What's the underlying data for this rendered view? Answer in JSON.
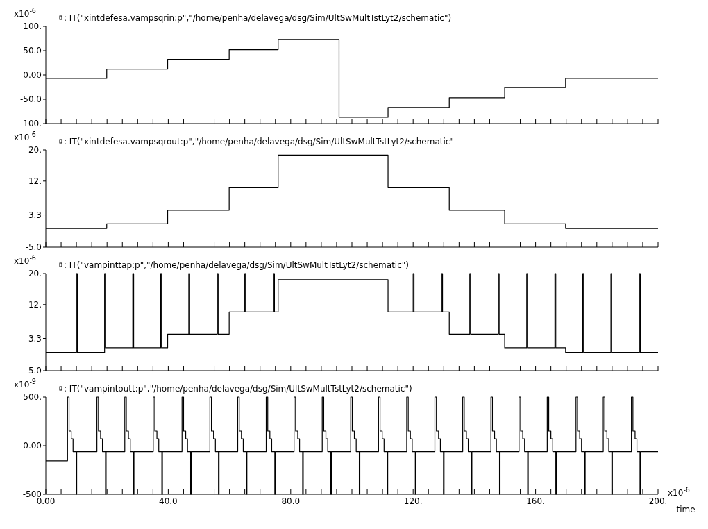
{
  "chart_data": [
    {
      "type": "step",
      "ylabel": "x10$^{-6}$",
      "xlim": [
        0,
        200
      ],
      "xticks": [
        {
          "value": 0,
          "label": null
        },
        {
          "value": 5,
          "label": null
        },
        {
          "value": 10,
          "label": null
        },
        {
          "value": 15,
          "label": null
        },
        {
          "value": 20,
          "label": null
        },
        {
          "value": 25,
          "label": null
        },
        {
          "value": 30,
          "label": null
        },
        {
          "value": 35,
          "label": null
        },
        {
          "value": 40,
          "label": null
        },
        {
          "value": 45,
          "label": null
        },
        {
          "value": 50,
          "label": null
        },
        {
          "value": 55,
          "label": null
        },
        {
          "value": 60,
          "label": null
        },
        {
          "value": 65,
          "label": null
        },
        {
          "value": 70,
          "label": null
        },
        {
          "value": 75,
          "label": null
        },
        {
          "value": 80,
          "label": null
        },
        {
          "value": 85,
          "label": null
        },
        {
          "value": 90,
          "label": null
        },
        {
          "value": 95,
          "label": null
        },
        {
          "value": 100,
          "label": null
        },
        {
          "value": 105,
          "label": null
        },
        {
          "value": 110,
          "label": null
        },
        {
          "value": 115,
          "label": null
        },
        {
          "value": 120,
          "label": null
        },
        {
          "value": 125,
          "label": null
        },
        {
          "value": 130,
          "label": null
        },
        {
          "value": 135,
          "label": null
        },
        {
          "value": 140,
          "label": null
        },
        {
          "value": 145,
          "label": null
        },
        {
          "value": 150,
          "label": null
        },
        {
          "value": 155,
          "label": null
        },
        {
          "value": 160,
          "label": null
        },
        {
          "value": 165,
          "label": null
        },
        {
          "value": 170,
          "label": null
        },
        {
          "value": 175,
          "label": null
        },
        {
          "value": 180,
          "label": null
        },
        {
          "value": 185,
          "label": null
        },
        {
          "value": 190,
          "label": null
        },
        {
          "value": 195,
          "label": null
        },
        {
          "value": 200,
          "label": null
        }
      ],
      "ylim": [
        -100,
        100
      ],
      "yticks": [
        {
          "value": 100,
          "label": "100."
        },
        {
          "value": 50,
          "label": "50.0"
        },
        {
          "value": 0,
          "label": "0.00"
        },
        {
          "value": -50,
          "label": "-50.0"
        },
        {
          "value": -100,
          "label": "-100."
        }
      ],
      "tick_labels": "y",
      "legend": "top",
      "series": [
        {
          "name": ": IT(\"xintdefesa.vampsqrin:p\",\"/home/penha/delavega/dsg/Sim/UltSwMultTstLyt2/schematic\")",
          "color": "#000000",
          "x": [
            0,
            19.9,
            39.8,
            59.9,
            75.9,
            95.8,
            111.8,
            131.8,
            149.9,
            169.8,
            200
          ],
          "values": [
            -7,
            12,
            32,
            52,
            73,
            -87,
            -67,
            -47,
            -26,
            -7,
            -7
          ]
        }
      ]
    },
    {
      "type": "step",
      "ylabel": "x10$^{-6}$",
      "xlim": [
        0,
        200
      ],
      "xticks": [
        {
          "value": 0,
          "label": null
        },
        {
          "value": 5,
          "label": null
        },
        {
          "value": 10,
          "label": null
        },
        {
          "value": 15,
          "label": null
        },
        {
          "value": 20,
          "label": null
        },
        {
          "value": 25,
          "label": null
        },
        {
          "value": 30,
          "label": null
        },
        {
          "value": 35,
          "label": null
        },
        {
          "value": 40,
          "label": null
        },
        {
          "value": 45,
          "label": null
        },
        {
          "value": 50,
          "label": null
        },
        {
          "value": 55,
          "label": null
        },
        {
          "value": 60,
          "label": null
        },
        {
          "value": 65,
          "label": null
        },
        {
          "value": 70,
          "label": null
        },
        {
          "value": 75,
          "label": null
        },
        {
          "value": 80,
          "label": null
        },
        {
          "value": 85,
          "label": null
        },
        {
          "value": 90,
          "label": null
        },
        {
          "value": 95,
          "label": null
        },
        {
          "value": 100,
          "label": null
        },
        {
          "value": 105,
          "label": null
        },
        {
          "value": 110,
          "label": null
        },
        {
          "value": 115,
          "label": null
        },
        {
          "value": 120,
          "label": null
        },
        {
          "value": 125,
          "label": null
        },
        {
          "value": 130,
          "label": null
        },
        {
          "value": 135,
          "label": null
        },
        {
          "value": 140,
          "label": null
        },
        {
          "value": 145,
          "label": null
        },
        {
          "value": 150,
          "label": null
        },
        {
          "value": 155,
          "label": null
        },
        {
          "value": 160,
          "label": null
        },
        {
          "value": 165,
          "label": null
        },
        {
          "value": 170,
          "label": null
        },
        {
          "value": 175,
          "label": null
        },
        {
          "value": 180,
          "label": null
        },
        {
          "value": 185,
          "label": null
        },
        {
          "value": 190,
          "label": null
        },
        {
          "value": 195,
          "label": null
        },
        {
          "value": 200,
          "label": null
        }
      ],
      "ylim": [
        -5,
        20
      ],
      "yticks": [
        {
          "value": 20,
          "label": "20."
        },
        {
          "value": 12,
          "label": "12."
        },
        3.3,
        {
          "value": -5,
          "label": "-5.0"
        }
      ],
      "tick_labels": "y",
      "legend": "top",
      "series": [
        {
          "name": ": IT(\"xintdefesa.vampsqrout:p\",\"/home/penha/delavega/dsg/Sim/UltSwMultTstLyt2/schematic\"",
          "color": "#000000",
          "x": [
            0,
            19.9,
            39.8,
            59.9,
            75.9,
            111.8,
            131.8,
            149.9,
            169.8,
            200
          ],
          "values": [
            -0.2,
            1.0,
            4.5,
            10.3,
            18.7,
            10.3,
            4.5,
            1.0,
            -0.2,
            -0.2
          ]
        }
      ]
    },
    {
      "type": "step",
      "ylabel": "x10$^{-6}$",
      "xlim": [
        0,
        200
      ],
      "xticks": [
        {
          "value": 0,
          "label": null
        },
        {
          "value": 5,
          "label": null
        },
        {
          "value": 10,
          "label": null
        },
        {
          "value": 15,
          "label": null
        },
        {
          "value": 20,
          "label": null
        },
        {
          "value": 25,
          "label": null
        },
        {
          "value": 30,
          "label": null
        },
        {
          "value": 35,
          "label": null
        },
        {
          "value": 40,
          "label": null
        },
        {
          "value": 45,
          "label": null
        },
        {
          "value": 50,
          "label": null
        },
        {
          "value": 55,
          "label": null
        },
        {
          "value": 60,
          "label": null
        },
        {
          "value": 65,
          "label": null
        },
        {
          "value": 70,
          "label": null
        },
        {
          "value": 75,
          "label": null
        },
        {
          "value": 80,
          "label": null
        },
        {
          "value": 85,
          "label": null
        },
        {
          "value": 90,
          "label": null
        },
        {
          "value": 95,
          "label": null
        },
        {
          "value": 100,
          "label": null
        },
        {
          "value": 105,
          "label": null
        },
        {
          "value": 110,
          "label": null
        },
        {
          "value": 115,
          "label": null
        },
        {
          "value": 120,
          "label": null
        },
        {
          "value": 125,
          "label": null
        },
        {
          "value": 130,
          "label": null
        },
        {
          "value": 135,
          "label": null
        },
        {
          "value": 140,
          "label": null
        },
        {
          "value": 145,
          "label": null
        },
        {
          "value": 150,
          "label": null
        },
        {
          "value": 155,
          "label": null
        },
        {
          "value": 160,
          "label": null
        },
        {
          "value": 165,
          "label": null
        },
        {
          "value": 170,
          "label": null
        },
        {
          "value": 175,
          "label": null
        },
        {
          "value": 180,
          "label": null
        },
        {
          "value": 185,
          "label": null
        },
        {
          "value": 190,
          "label": null
        },
        {
          "value": 195,
          "label": null
        },
        {
          "value": 200,
          "label": null
        }
      ],
      "ylim": [
        -5,
        20
      ],
      "yticks": [
        {
          "value": 20,
          "label": "20."
        },
        {
          "value": 12,
          "label": "12."
        },
        3.3,
        {
          "value": -5,
          "label": "-5.0"
        }
      ],
      "tick_labels": "y",
      "legend": "top",
      "series": [
        {
          "name": ": IT(\"vampinttap:p\",\"/home/penha/delavega/dsg/Sim/UltSwMultTstLyt2/schematic\")",
          "color": "#000000",
          "x": [
            0,
            10,
            10.3,
            19.2,
            19.5,
            28.4,
            28.7,
            37.5,
            37.8,
            39.8,
            46.7,
            47,
            56,
            56.3,
            59.9,
            65,
            65.3,
            74.4,
            74.7,
            75.9,
            111.8,
            120,
            120.3,
            129.3,
            129.6,
            131.8,
            138.5,
            138.8,
            147.8,
            148.1,
            149.9,
            157.1,
            157.4,
            166.3,
            166.6,
            169.8,
            175.4,
            175.7,
            184.6,
            184.9,
            193.9,
            194.2,
            200
          ],
          "values": [
            -0.3,
            20,
            -0.3,
            20,
            0.9,
            20,
            0.9,
            20,
            0.9,
            4.4,
            20,
            4.4,
            20,
            4.4,
            10.1,
            20,
            10.1,
            20,
            10.1,
            18.4,
            10.1,
            20,
            10.1,
            20,
            10.1,
            4.4,
            20,
            4.4,
            20,
            4.4,
            0.9,
            20,
            0.9,
            20,
            0.9,
            -0.3,
            20,
            -0.3,
            20,
            -0.3,
            20,
            -0.3,
            -0.3
          ]
        }
      ]
    },
    {
      "type": "step",
      "ylabel": "x10$^{-9}$",
      "xlabel": "time",
      "annotations": [
        "x10$^{-6}$"
      ],
      "xlim": [
        0,
        200
      ],
      "xticks": [
        {
          "value": 0,
          "label": "0.00"
        },
        {
          "value": 5,
          "label": null
        },
        {
          "value": 10,
          "label": null
        },
        {
          "value": 15,
          "label": null
        },
        {
          "value": 20,
          "label": null
        },
        {
          "value": 25,
          "label": null
        },
        {
          "value": 30,
          "label": null
        },
        {
          "value": 35,
          "label": null
        },
        {
          "value": 40,
          "label": "40.0"
        },
        {
          "value": 45,
          "label": null
        },
        {
          "value": 50,
          "label": null
        },
        {
          "value": 55,
          "label": null
        },
        {
          "value": 60,
          "label": null
        },
        {
          "value": 65,
          "label": null
        },
        {
          "value": 70,
          "label": null
        },
        {
          "value": 75,
          "label": null
        },
        {
          "value": 80,
          "label": "80.0"
        },
        {
          "value": 85,
          "label": null
        },
        {
          "value": 90,
          "label": null
        },
        {
          "value": 95,
          "label": null
        },
        {
          "value": 100,
          "label": null
        },
        {
          "value": 105,
          "label": null
        },
        {
          "value": 110,
          "label": null
        },
        {
          "value": 115,
          "label": null
        },
        {
          "value": 120,
          "label": "120."
        },
        {
          "value": 125,
          "label": null
        },
        {
          "value": 130,
          "label": null
        },
        {
          "value": 135,
          "label": null
        },
        {
          "value": 140,
          "label": null
        },
        {
          "value": 145,
          "label": null
        },
        {
          "value": 150,
          "label": null
        },
        {
          "value": 155,
          "label": null
        },
        {
          "value": 160,
          "label": "160."
        },
        {
          "value": 165,
          "label": null
        },
        {
          "value": 170,
          "label": null
        },
        {
          "value": 175,
          "label": null
        },
        {
          "value": 180,
          "label": null
        },
        {
          "value": 185,
          "label": null
        },
        {
          "value": 190,
          "label": null
        },
        {
          "value": 195,
          "label": null
        },
        {
          "value": 200,
          "label": "200."
        }
      ],
      "ylim": [
        -500,
        500
      ],
      "yticks": [
        {
          "value": 500,
          "label": "500."
        },
        {
          "value": 0,
          "label": "0.00"
        },
        -500
      ],
      "legend": "top",
      "series": [
        {
          "name": ": IT(\"vampintoutt:p\",\"/home/penha/delavega/dsg/Sim/UltSwMultTstLyt2/schematic\")",
          "color": "#000000",
          "x": [
            0,
            7.1,
            7.6,
            8.3,
            8.9,
            9.9,
            10.1,
            16.7,
            17.2,
            17.9,
            18.5,
            19.5,
            19.7,
            25.8,
            26.3,
            27.0,
            27.6,
            28.6,
            28.8,
            35.1,
            35.6,
            36.3,
            36.9,
            37.9,
            38.1,
            44.5,
            45.0,
            45.7,
            46.3,
            47.3,
            47.5,
            53.6,
            54.1,
            54.8,
            55.4,
            56.4,
            56.6,
            62.7,
            63.2,
            63.9,
            64.5,
            65.5,
            65.7,
            72.0,
            72.5,
            73.2,
            73.8,
            74.8,
            75.0,
            81.1,
            81.6,
            82.3,
            82.9,
            83.9,
            84.1,
            90.3,
            90.8,
            91.5,
            92.1,
            93.1,
            93.3,
            99.6,
            100.1,
            100.8,
            101.4,
            102.4,
            102.6,
            108.7,
            109.2,
            109.9,
            110.5,
            111.5,
            111.7,
            117.9,
            118.4,
            119.1,
            119.7,
            120.7,
            120.9,
            127.1,
            127.6,
            128.3,
            128.9,
            129.9,
            130.1,
            136.2,
            136.7,
            137.4,
            138.0,
            139.0,
            139.2,
            145.4,
            145.9,
            146.6,
            147.2,
            148.2,
            148.4,
            154.6,
            155.1,
            155.8,
            156.4,
            157.4,
            157.6,
            163.8,
            164.3,
            165.0,
            165.6,
            166.6,
            166.8,
            173.2,
            173.7,
            174.4,
            175.0,
            176.0,
            176.2,
            182.1,
            182.6,
            183.3,
            183.9,
            184.9,
            185.1,
            191.3,
            191.8,
            192.5,
            193.1,
            194.1,
            194.3,
            200
          ],
          "values": [
            -156,
            500,
            150,
            70,
            -61,
            -500,
            -61,
            500,
            150,
            70,
            -61,
            -500,
            -61,
            500,
            150,
            70,
            -61,
            -500,
            -61,
            500,
            150,
            70,
            -61,
            -500,
            -61,
            500,
            150,
            70,
            -61,
            -500,
            -61,
            500,
            150,
            70,
            -61,
            -500,
            -61,
            500,
            150,
            70,
            -61,
            -500,
            -61,
            500,
            150,
            70,
            -61,
            -500,
            -61,
            500,
            150,
            70,
            -61,
            -500,
            -61,
            500,
            150,
            70,
            -61,
            -500,
            -61,
            500,
            150,
            70,
            -61,
            -500,
            -61,
            500,
            150,
            70,
            -61,
            -500,
            -61,
            500,
            150,
            70,
            -61,
            -500,
            -61,
            500,
            150,
            70,
            -61,
            -500,
            -61,
            500,
            150,
            70,
            -61,
            -500,
            -61,
            500,
            150,
            70,
            -61,
            -500,
            -61,
            500,
            150,
            70,
            -61,
            -500,
            -61,
            500,
            150,
            70,
            -61,
            -500,
            -61,
            500,
            150,
            70,
            -61,
            -500,
            -61,
            500,
            150,
            70,
            -61,
            -500,
            -61,
            500,
            150,
            70,
            -61,
            -500,
            -61,
            -61
          ]
        }
      ]
    }
  ]
}
